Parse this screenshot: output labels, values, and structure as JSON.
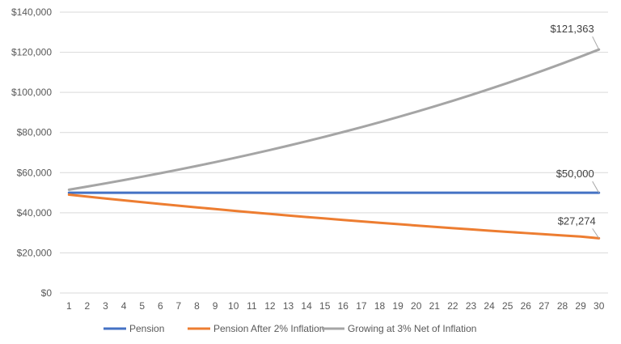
{
  "chart_data": {
    "type": "line",
    "title": "",
    "xlabel": "",
    "ylabel": "",
    "x": [
      1,
      2,
      3,
      4,
      5,
      6,
      7,
      8,
      9,
      10,
      11,
      12,
      13,
      14,
      15,
      16,
      17,
      18,
      19,
      20,
      21,
      22,
      23,
      24,
      25,
      26,
      27,
      28,
      29,
      30
    ],
    "ylim": [
      0,
      140000
    ],
    "yticks": [
      0,
      20000,
      40000,
      60000,
      80000,
      100000,
      120000,
      140000
    ],
    "ytick_labels": [
      "$0",
      "$20,000",
      "$40,000",
      "$60,000",
      "$80,000",
      "$100,000",
      "$120,000",
      "$140,000"
    ],
    "grid": true,
    "legend_position": "bottom",
    "series": [
      {
        "name": "Pension",
        "color": "#4472C4",
        "values": [
          50000,
          50000,
          50000,
          50000,
          50000,
          50000,
          50000,
          50000,
          50000,
          50000,
          50000,
          50000,
          50000,
          50000,
          50000,
          50000,
          50000,
          50000,
          50000,
          50000,
          50000,
          50000,
          50000,
          50000,
          50000,
          50000,
          50000,
          50000,
          50000,
          50000
        ],
        "end_label": "$50,000"
      },
      {
        "name": "Pension After 2% Inflation",
        "color": "#ED7D31",
        "values": [
          49020,
          48058,
          47116,
          46192,
          45287,
          44399,
          43528,
          42675,
          41838,
          41017,
          40213,
          39425,
          38652,
          37894,
          37151,
          36422,
          35708,
          35008,
          34322,
          33649,
          32989,
          32342,
          31708,
          31086,
          30477,
          29879,
          29293,
          28719,
          28156,
          27274
        ],
        "end_label": "$27,274"
      },
      {
        "name": "Growing at 3% Net of Inflation",
        "color": "#A5A5A5",
        "values": [
          51500,
          53045,
          54636,
          56275,
          57964,
          59703,
          61494,
          63339,
          65239,
          67196,
          69212,
          71288,
          73427,
          75629,
          77898,
          80235,
          82642,
          85122,
          87675,
          90305,
          93015,
          95805,
          98679,
          101640,
          104689,
          107830,
          111064,
          114396,
          117828,
          121363
        ],
        "end_label": "$121,363"
      }
    ]
  }
}
